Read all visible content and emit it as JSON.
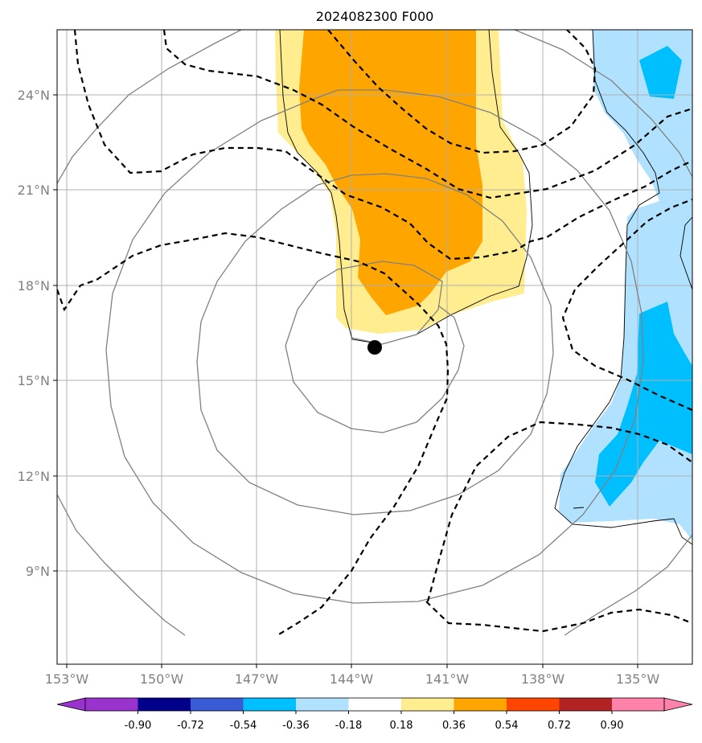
{
  "title": "2024082300 F000",
  "map": {
    "lon_range": [
      -153.25,
      -133.25
    ],
    "lat_range": [
      5.5,
      25.5
    ],
    "x_tick_labels": [
      "153°W",
      "150°W",
      "147°W",
      "144°W",
      "141°W",
      "138°W",
      "135°W"
    ],
    "y_tick_labels": [
      "24°N",
      "21°N",
      "18°N",
      "15°N",
      "12°N",
      "9°N"
    ],
    "storm_center": {
      "lon": -142.7,
      "lat": 16.05
    }
  },
  "colorbar": {
    "levels": [
      "-0.90",
      "-0.72",
      "-0.54",
      "-0.36",
      "-0.18",
      "0.18",
      "0.36",
      "0.54",
      "0.72",
      "0.90"
    ],
    "colors": [
      "#9a32cd",
      "#00008b",
      "#3a5bd6",
      "#00bfff",
      "#b0e2ff",
      "#ffffff",
      "#ffed8f",
      "#ffa500",
      "#ff4500",
      "#b22222",
      "#ff82ab"
    ]
  },
  "colors": {
    "positive_light": "#ffed8f",
    "positive_mid": "#ffa500",
    "negative_light": "#b0e2ff",
    "negative_mid": "#00bfff",
    "contour_gray": "#808080",
    "contour_dashed": "#000000",
    "grid": "#b0b0b0"
  }
}
